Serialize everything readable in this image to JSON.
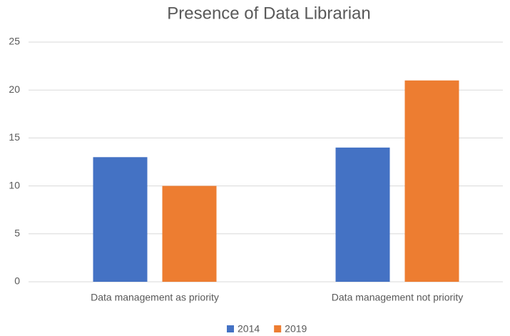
{
  "chart_data": {
    "type": "bar",
    "title": "Presence of Data Librarian",
    "categories": [
      "Data management as priority",
      "Data management not priority"
    ],
    "series": [
      {
        "name": "2014",
        "color": "#4472c4",
        "values": [
          13,
          14
        ]
      },
      {
        "name": "2019",
        "color": "#ed7d31",
        "values": [
          10,
          21
        ]
      }
    ],
    "ylim": [
      0,
      25
    ],
    "yticks": [
      0,
      5,
      10,
      15,
      20,
      25
    ],
    "grid": true,
    "legend": "bottom"
  }
}
